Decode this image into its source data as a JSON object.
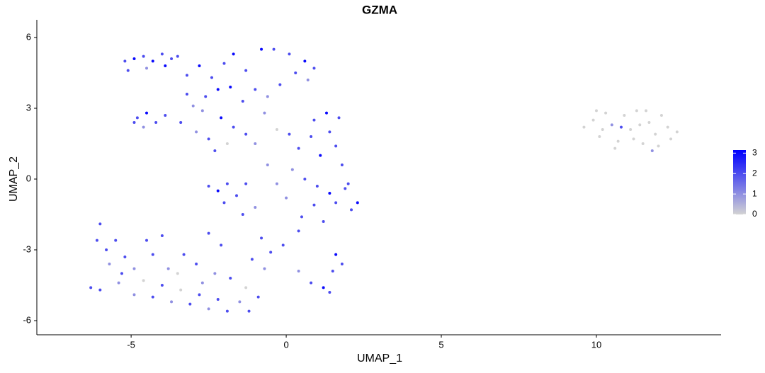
{
  "chart_data": {
    "type": "scatter",
    "title": "GZMA",
    "x_label": "UMAP_1",
    "y_label": "UMAP_2",
    "xlim": [
      -8.04,
      14.02
    ],
    "xticks": [
      -5,
      0,
      5,
      10
    ],
    "ylim": [
      -6.6,
      6.75
    ],
    "yticks": [
      -6,
      -3,
      0,
      3,
      6
    ],
    "colorbar": {
      "lim": [
        0,
        3.15
      ],
      "ticks": [
        0,
        1,
        2,
        3
      ],
      "low": "#d3d3d3",
      "high": "#0000ff"
    },
    "x": [
      -5.2,
      -4.9,
      -4.6,
      -4.3,
      -4.0,
      -3.7,
      -4.5,
      -3.9,
      -5.1,
      -3.5,
      -3.2,
      -2.8,
      -2.4,
      -2.0,
      -1.7,
      -1.3,
      -0.8,
      -0.4,
      0.1,
      0.6,
      0.9,
      0.7,
      -2.2,
      -1.8,
      -2.6,
      -3.0,
      -1.4,
      -1.0,
      -0.6,
      -0.2,
      0.3,
      -3.4,
      -2.9,
      -2.5,
      -2.1,
      -1.7,
      -1.3,
      -1.0,
      -2.3,
      -3.2,
      -0.7,
      -0.3,
      -1.9,
      -2.7,
      -4.8,
      -4.5,
      -4.2,
      -3.9,
      -4.6,
      -4.9,
      0.9,
      1.3,
      1.4,
      0.8,
      0.4,
      1.1,
      1.6,
      1.8,
      0.2,
      0.6,
      1.0,
      1.4,
      1.9,
      2.3,
      2.1,
      1.6,
      0.9,
      0.5,
      1.2,
      0.0,
      -0.3,
      -0.6,
      0.1,
      1.7,
      2.0,
      0.4,
      -2.5,
      -2.2,
      -1.9,
      -1.6,
      -2.0,
      -1.4,
      -1.0,
      -1.3,
      -0.8,
      -0.5,
      -0.1,
      -1.1,
      -0.7,
      -6.0,
      -6.1,
      -5.8,
      -5.5,
      -5.2,
      -5.7,
      -5.3,
      -4.9,
      -4.6,
      -4.9,
      -4.3,
      -4.0,
      -3.7,
      -3.4,
      -3.1,
      -2.8,
      -2.5,
      -2.2,
      -1.9,
      -1.5,
      -1.2,
      -0.9,
      -1.3,
      -1.8,
      -2.3,
      -2.9,
      -3.3,
      -3.8,
      -4.3,
      -2.5,
      -2.1,
      -4.5,
      -6.3,
      -6.0,
      -5.4,
      -4.0,
      -3.5,
      -2.7,
      1.6,
      1.8,
      1.5,
      0.8,
      1.2,
      1.4,
      0.4,
      9.6,
      9.9,
      10.1,
      10.3,
      10.5,
      10.7,
      10.9,
      11.1,
      11.3,
      11.5,
      11.7,
      11.9,
      12.1,
      12.3,
      12.6,
      10.8,
      11.4,
      10.2,
      12.0,
      11.6,
      10.0,
      12.4,
      11.8,
      10.6,
      11.2
    ],
    "y": [
      5.0,
      5.1,
      5.2,
      5.0,
      5.3,
      5.1,
      4.7,
      4.8,
      4.6,
      5.2,
      4.4,
      4.8,
      4.3,
      4.9,
      5.3,
      4.6,
      5.5,
      5.5,
      5.3,
      5.0,
      4.7,
      4.2,
      3.8,
      3.9,
      3.5,
      3.1,
      3.3,
      3.8,
      3.5,
      4.0,
      4.5,
      2.4,
      2.0,
      1.7,
      2.6,
      2.2,
      1.9,
      1.5,
      1.2,
      3.6,
      2.8,
      2.1,
      1.5,
      2.9,
      2.6,
      2.8,
      2.4,
      2.7,
      2.2,
      2.4,
      2.5,
      2.8,
      2.0,
      1.8,
      1.3,
      1.0,
      1.4,
      0.6,
      0.4,
      0.0,
      -0.3,
      -0.6,
      -0.4,
      -1.0,
      -1.3,
      -1.0,
      -1.1,
      -1.6,
      -1.8,
      -0.8,
      -0.2,
      0.6,
      1.9,
      2.6,
      -0.2,
      -2.2,
      -0.3,
      -0.5,
      -0.2,
      -0.7,
      -1.0,
      -1.5,
      -1.2,
      -0.2,
      -2.5,
      -3.1,
      -2.8,
      -3.4,
      -3.8,
      -1.9,
      -2.6,
      -3.0,
      -2.6,
      -3.3,
      -3.6,
      -4.0,
      -3.8,
      -4.3,
      -4.9,
      -5.0,
      -4.5,
      -5.2,
      -4.7,
      -5.3,
      -4.9,
      -5.5,
      -5.1,
      -5.6,
      -5.2,
      -5.6,
      -5.0,
      -4.6,
      -4.2,
      -4.0,
      -3.6,
      -3.2,
      -3.8,
      -3.2,
      -2.3,
      -2.8,
      -2.6,
      -4.6,
      -4.7,
      -4.4,
      -2.4,
      -4.0,
      -4.4,
      -3.2,
      -3.6,
      -3.9,
      -4.4,
      -4.6,
      -4.8,
      -3.9,
      2.2,
      2.5,
      1.8,
      2.8,
      2.3,
      1.6,
      2.7,
      2.1,
      2.9,
      1.5,
      2.4,
      1.9,
      2.7,
      2.2,
      2.0,
      2.2,
      2.3,
      2.1,
      1.4,
      2.9,
      2.9,
      1.7,
      1.2,
      1.3,
      1.7
    ],
    "expression": [
      2,
      3,
      2,
      3,
      2,
      2,
      1,
      3,
      2,
      2,
      2,
      3,
      2,
      2,
      3,
      2,
      3,
      2,
      2,
      3,
      2,
      1,
      3,
      3,
      2,
      1,
      2,
      2,
      1,
      2,
      2,
      2,
      1,
      2,
      3,
      2,
      2,
      1,
      2,
      2,
      1,
      0,
      0,
      1,
      2,
      3,
      2,
      2,
      1,
      2,
      2,
      3,
      2,
      2,
      2,
      3,
      2,
      2,
      1,
      2,
      2,
      3,
      2,
      3,
      2,
      2,
      2,
      2,
      2,
      1,
      1,
      1,
      2,
      2,
      2,
      2,
      2,
      3,
      2,
      2,
      2,
      2,
      1,
      2,
      2,
      2,
      2,
      2,
      1,
      2,
      2,
      2,
      2,
      2,
      1,
      2,
      1,
      0,
      1,
      2,
      2,
      1,
      0,
      2,
      2,
      1,
      2,
      2,
      1,
      2,
      2,
      0,
      2,
      1,
      2,
      2,
      1,
      2,
      2,
      2,
      2,
      2,
      2,
      1,
      2,
      0,
      1,
      3,
      2,
      2,
      2,
      3,
      2,
      1,
      0,
      0,
      0,
      0,
      1,
      0,
      0,
      0,
      0,
      0,
      0,
      0,
      0,
      0,
      0,
      2,
      0,
      0,
      0,
      0,
      0,
      0,
      1,
      0,
      0
    ]
  }
}
